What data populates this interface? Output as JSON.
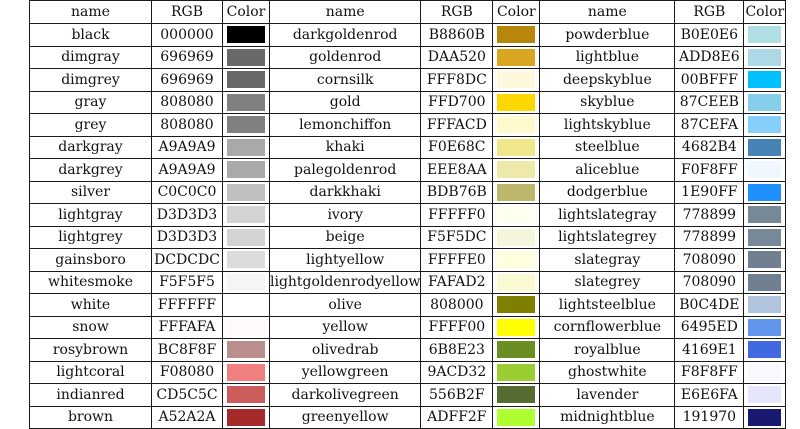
{
  "headers": [
    "name",
    "RGB",
    "Color",
    "name",
    "RGB",
    "Color",
    "name",
    "RGB",
    "Color"
  ],
  "rows": [
    [
      {
        "name": "black",
        "rgb": "000000",
        "color": "#000000"
      },
      {
        "name": "darkgoldenrod",
        "rgb": "B8860B",
        "color": "#B8860B"
      },
      {
        "name": "powderblue",
        "rgb": "B0E0E6",
        "color": "#B0E0E6"
      }
    ],
    [
      {
        "name": "dimgray",
        "rgb": "696969",
        "color": "#696969"
      },
      {
        "name": "goldenrod",
        "rgb": "DAA520",
        "color": "#DAA520"
      },
      {
        "name": "lightblue",
        "rgb": "ADD8E6",
        "color": "#ADD8E6"
      }
    ],
    [
      {
        "name": "dimgrey",
        "rgb": "696969",
        "color": "#696969"
      },
      {
        "name": "cornsilk",
        "rgb": "FFF8DC",
        "color": "#FFF8DC"
      },
      {
        "name": "deepskyblue",
        "rgb": "00BFFF",
        "color": "#00BFFF"
      }
    ],
    [
      {
        "name": "gray",
        "rgb": "808080",
        "color": "#808080"
      },
      {
        "name": "gold",
        "rgb": "FFD700",
        "color": "#FFD700"
      },
      {
        "name": "skyblue",
        "rgb": "87CEEB",
        "color": "#87CEEB"
      }
    ],
    [
      {
        "name": "grey",
        "rgb": "808080",
        "color": "#808080"
      },
      {
        "name": "lemonchiffon",
        "rgb": "FFFACD",
        "color": "#FFFACD"
      },
      {
        "name": "lightskyblue",
        "rgb": "87CEFA",
        "color": "#87CEFA"
      }
    ],
    [
      {
        "name": "darkgray",
        "rgb": "A9A9A9",
        "color": "#A9A9A9"
      },
      {
        "name": "khaki",
        "rgb": "F0E68C",
        "color": "#F0E68C"
      },
      {
        "name": "steelblue",
        "rgb": "4682B4",
        "color": "#4682B4"
      }
    ],
    [
      {
        "name": "darkgrey",
        "rgb": "A9A9A9",
        "color": "#A9A9A9"
      },
      {
        "name": "palegoldenrod",
        "rgb": "EEE8AA",
        "color": "#EEE8AA"
      },
      {
        "name": "aliceblue",
        "rgb": "F0F8FF",
        "color": "#F0F8FF"
      }
    ],
    [
      {
        "name": "silver",
        "rgb": "C0C0C0",
        "color": "#C0C0C0"
      },
      {
        "name": "darkkhaki",
        "rgb": "BDB76B",
        "color": "#BDB76B"
      },
      {
        "name": "dodgerblue",
        "rgb": "1E90FF",
        "color": "#1E90FF"
      }
    ],
    [
      {
        "name": "lightgray",
        "rgb": "D3D3D3",
        "color": "#D3D3D3"
      },
      {
        "name": "ivory",
        "rgb": "FFFFF0",
        "color": "#FFFFF0"
      },
      {
        "name": "lightslategray",
        "rgb": "778899",
        "color": "#778899"
      }
    ],
    [
      {
        "name": "lightgrey",
        "rgb": "D3D3D3",
        "color": "#D3D3D3"
      },
      {
        "name": "beige",
        "rgb": "F5F5DC",
        "color": "#F5F5DC"
      },
      {
        "name": "lightslategrey",
        "rgb": "778899",
        "color": "#778899"
      }
    ],
    [
      {
        "name": "gainsboro",
        "rgb": "DCDCDC",
        "color": "#DCDCDC"
      },
      {
        "name": "lightyellow",
        "rgb": "FFFFE0",
        "color": "#FFFFE0"
      },
      {
        "name": "slategray",
        "rgb": "708090",
        "color": "#708090"
      }
    ],
    [
      {
        "name": "whitesmoke",
        "rgb": "F5F5F5",
        "color": "#F5F5F5"
      },
      {
        "name": "lightgoldenrodyellow",
        "rgb": "FAFAD2",
        "color": "#FAFAD2"
      },
      {
        "name": "slategrey",
        "rgb": "708090",
        "color": "#708090"
      }
    ],
    [
      {
        "name": "white",
        "rgb": "FFFFFF",
        "color": "#FFFFFF"
      },
      {
        "name": "olive",
        "rgb": "808000",
        "color": "#808000"
      },
      {
        "name": "lightsteelblue",
        "rgb": "B0C4DE",
        "color": "#B0C4DE"
      }
    ],
    [
      {
        "name": "snow",
        "rgb": "FFFAFA",
        "color": "#FFFAFA"
      },
      {
        "name": "yellow",
        "rgb": "FFFF00",
        "color": "#FFFF00"
      },
      {
        "name": "cornflowerblue",
        "rgb": "6495ED",
        "color": "#6495ED"
      }
    ],
    [
      {
        "name": "rosybrown",
        "rgb": "BC8F8F",
        "color": "#BC8F8F"
      },
      {
        "name": "olivedrab",
        "rgb": "6B8E23",
        "color": "#6B8E23"
      },
      {
        "name": "royalblue",
        "rgb": "4169E1",
        "color": "#4169E1"
      }
    ],
    [
      {
        "name": "lightcoral",
        "rgb": "F08080",
        "color": "#F08080"
      },
      {
        "name": "yellowgreen",
        "rgb": "9ACD32",
        "color": "#9ACD32"
      },
      {
        "name": "ghostwhite",
        "rgb": "F8F8FF",
        "color": "#F8F8FF"
      }
    ],
    [
      {
        "name": "indianred",
        "rgb": "CD5C5C",
        "color": "#CD5C5C"
      },
      {
        "name": "darkolivegreen",
        "rgb": "556B2F",
        "color": "#556B2F"
      },
      {
        "name": "lavender",
        "rgb": "E6E6FA",
        "color": "#E6E6FA"
      }
    ],
    [
      {
        "name": "brown",
        "rgb": "A52A2A",
        "color": "#A52A2A"
      },
      {
        "name": "greenyellow",
        "rgb": "ADFF2F",
        "color": "#ADFF2F"
      },
      {
        "name": "midnightblue",
        "rgb": "191970",
        "color": "#191970"
      }
    ]
  ]
}
